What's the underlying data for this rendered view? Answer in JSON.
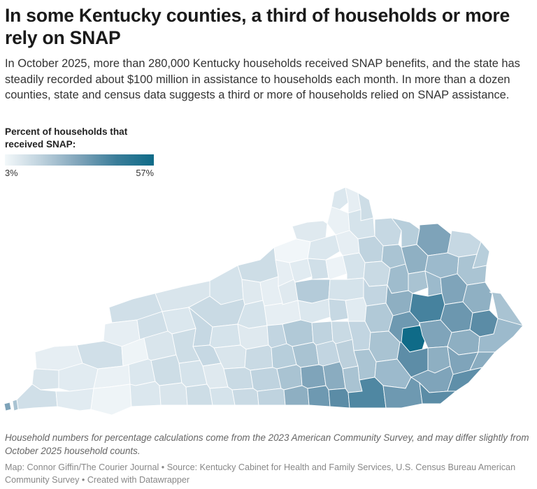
{
  "header": {
    "title": "In some Kentucky counties, a third of households or more rely on SNAP",
    "description": "In October 2025, more than 280,000 Kentucky households received SNAP benefits, and the state has steadily recorded about $100 million in assistance to households each month. In more than a dozen counties, state and census data suggests a third or more of households relied on SNAP assistance."
  },
  "legend": {
    "title": "Percent of households that received SNAP:",
    "min_label": "3%",
    "max_label": "57%",
    "min_value": 3,
    "max_value": 57,
    "color_low": "#f3f8fa",
    "color_high": "#0f6b88"
  },
  "map": {
    "region": "Kentucky counties",
    "metric": "Percent of households that received SNAP",
    "boundary_color": "#ffffff"
  },
  "footer": {
    "note": "Household numbers for percentage calculations come from the 2023 American Community Survey, and may differ slightly from October 2025 household counts.",
    "credit_map": "Map: Connor Giffin/The Courier Journal",
    "credit_source": "Source: Kentucky Cabinet for Health and Family Services, U.S. Census Bureau American Community Survey",
    "credit_tool": "Created with Datawrapper",
    "separator": "•"
  }
}
